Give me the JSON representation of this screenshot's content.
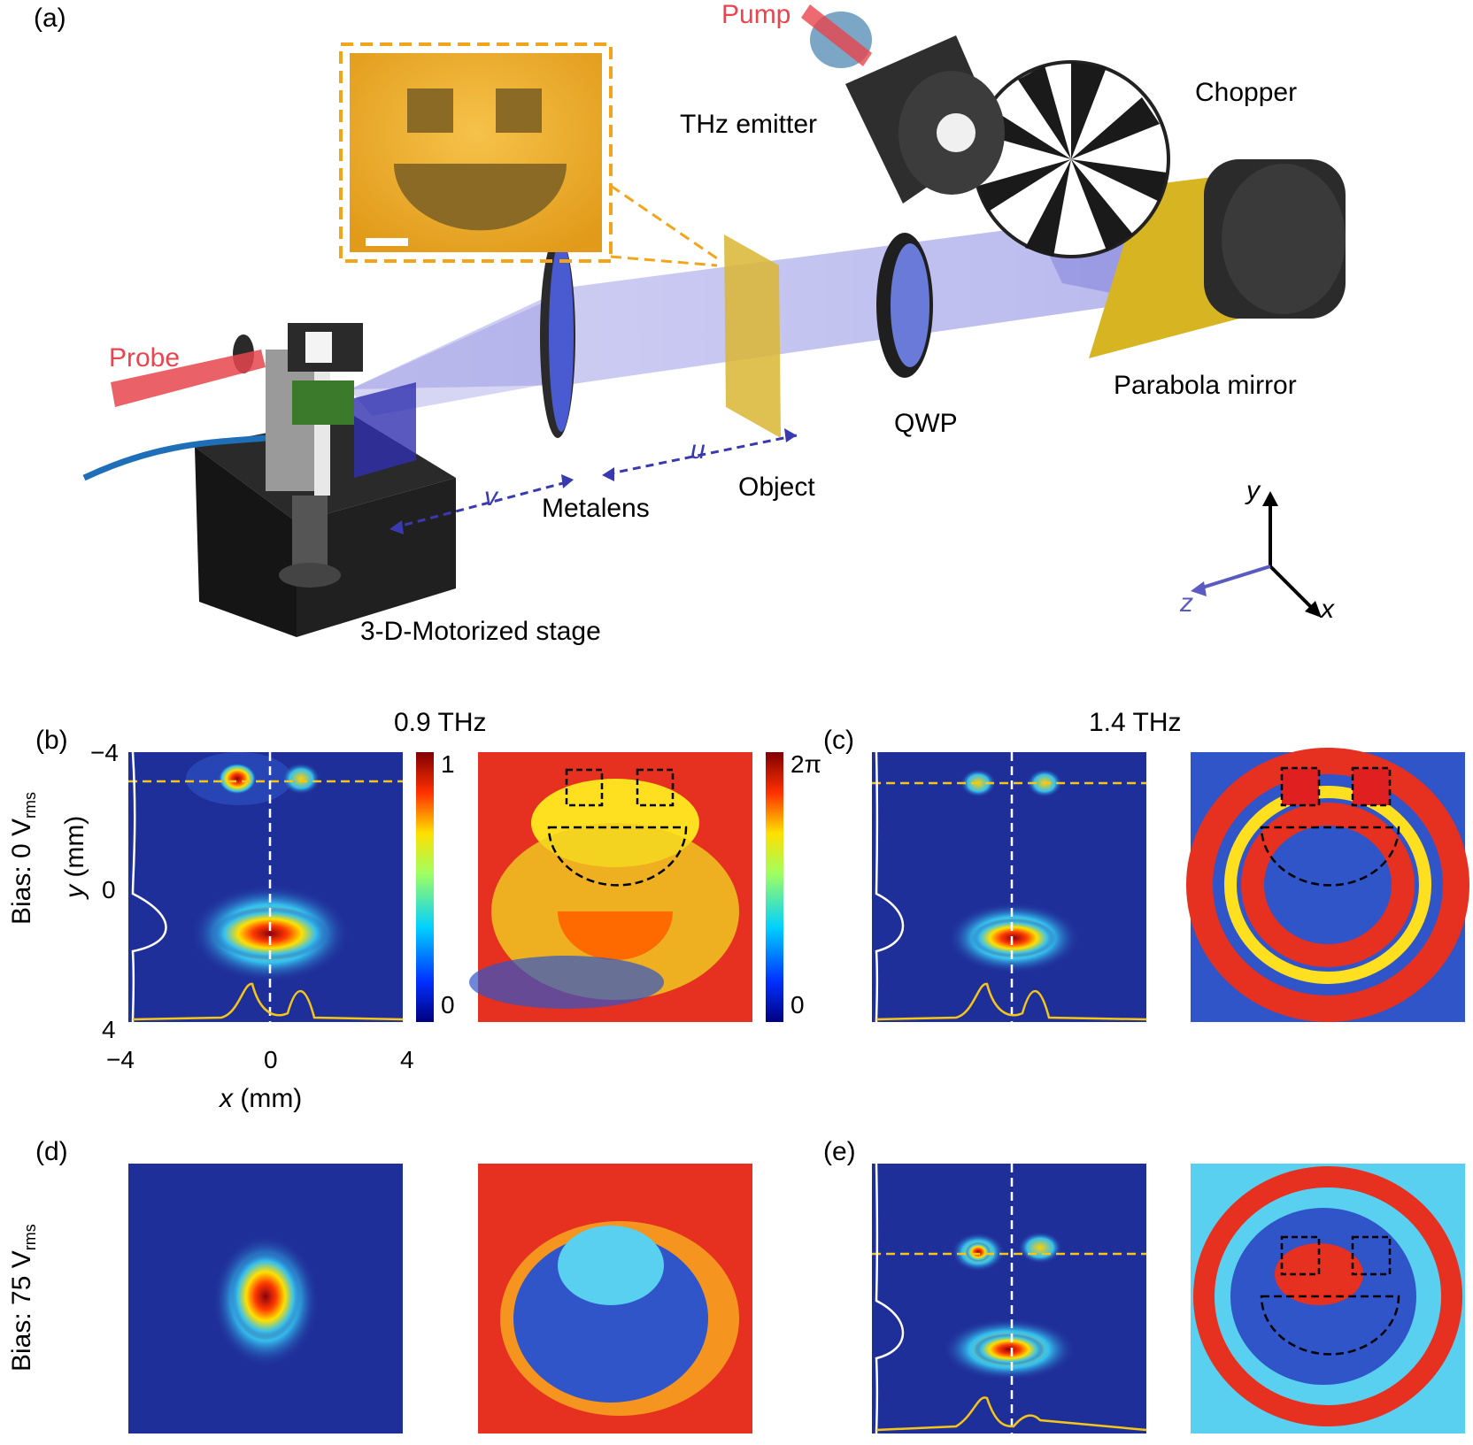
{
  "panels": {
    "a": "(a)",
    "b": "(b)",
    "c": "(c)",
    "d": "(d)",
    "e": "(e)"
  },
  "setup": {
    "pump": "Pump",
    "chopper": "Chopper",
    "thz_emitter": "THz emitter",
    "probe": "Probe",
    "parabola_mirror": "Parabola mirror",
    "qwp": "QWP",
    "object": "Object",
    "metalens": "Metalens",
    "stage": "3-D-Motorized stage",
    "u": "u",
    "v": "v",
    "axis_x": "x",
    "axis_y": "y",
    "axis_z": "z"
  },
  "freq": {
    "f1": "0.9 THz",
    "f2": "1.4 THz"
  },
  "bias": {
    "row1_prefix": "Bias: 0 V",
    "row1_sub": "rms",
    "row2_prefix": "Bias: 75 V",
    "row2_sub": "rms"
  },
  "axes": {
    "x_label_var": "x",
    "x_label_unit": " (mm)",
    "y_label_var": "y",
    "y_label_unit": " (mm)",
    "y_ticks": [
      "−4",
      "0",
      "4"
    ],
    "x_ticks": [
      "−4",
      "0",
      "4"
    ]
  },
  "colorbars": {
    "amp_max": "1",
    "amp_min": "0",
    "phase_max": "2π",
    "phase_min": "0"
  },
  "colors": {
    "beam": "#6f6fd6",
    "probe": "#e8454e",
    "map_bg": "#1f2f9a",
    "dash_yellow": "#f5c518",
    "inset_border": "#f2a51a"
  }
}
